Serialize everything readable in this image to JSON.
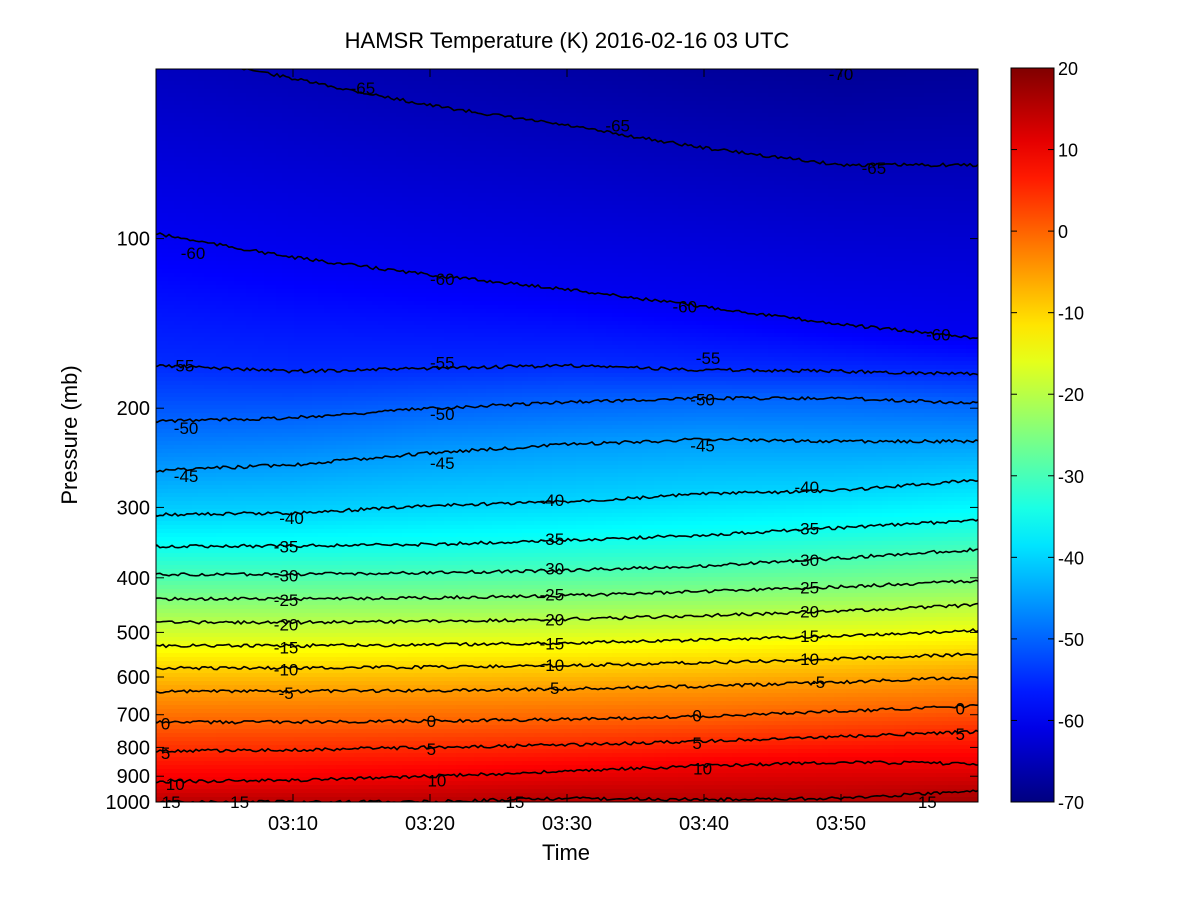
{
  "chart_data": {
    "type": "heatmap",
    "subtype": "filled-contour",
    "title": "HAMSR  Temperature (K) 2016-02-16 03 UTC",
    "xlabel": "Time",
    "ylabel": "Pressure (mb)",
    "x_tick_labels": [
      "03:10",
      "03:20",
      "03:30",
      "03:40",
      "03:50"
    ],
    "x_tick_minutes": [
      10,
      20,
      30,
      40,
      50
    ],
    "xlim_minutes": [
      0,
      60
    ],
    "y_tick_labels": [
      "100",
      "200",
      "300",
      "400",
      "500",
      "600",
      "700",
      "800",
      "900",
      "1000"
    ],
    "y_tick_values": [
      100,
      200,
      300,
      400,
      500,
      600,
      700,
      800,
      900,
      1000
    ],
    "ylim": [
      50,
      1000
    ],
    "y_scale": "log",
    "y_reversed": true,
    "colorbar": {
      "colormap": "jet",
      "range": [
        -70,
        20
      ],
      "tick_labels": [
        "20",
        "10",
        "0",
        "-10",
        "-20",
        "-30",
        "-40",
        "-50",
        "-60",
        "-70"
      ],
      "tick_values": [
        20,
        10,
        0,
        -10,
        -20,
        -30,
        -40,
        -50,
        -60,
        -70
      ]
    },
    "contour_levels": [
      -70,
      -65,
      -60,
      -55,
      -50,
      -45,
      -40,
      -35,
      -30,
      -25,
      -20,
      -15,
      -10,
      -5,
      0,
      5,
      10,
      15
    ],
    "contours": [
      {
        "level": -65,
        "x": [
          0,
          10,
          20,
          30,
          40,
          50,
          60
        ],
        "p": [
          46,
          52,
          58,
          63,
          69,
          74,
          74
        ]
      },
      {
        "level": -60,
        "x": [
          0,
          10,
          20,
          30,
          40,
          50,
          60
        ],
        "p": [
          98,
          108,
          116,
          123,
          132,
          142,
          150
        ]
      },
      {
        "level": -55,
        "x": [
          0,
          10,
          20,
          30,
          40,
          50,
          60
        ],
        "p": [
          168,
          172,
          170,
          168,
          171,
          172,
          174
        ]
      },
      {
        "level": -50,
        "x": [
          0,
          10,
          20,
          30,
          40,
          50,
          60
        ],
        "p": [
          211,
          208,
          200,
          195,
          192,
          192,
          196
        ]
      },
      {
        "level": -45,
        "x": [
          0,
          10,
          20,
          30,
          40,
          50,
          60
        ],
        "p": [
          258,
          252,
          240,
          232,
          227,
          229,
          229
        ]
      },
      {
        "level": -40,
        "x": [
          0,
          10,
          20,
          30,
          40,
          50,
          60
        ],
        "p": [
          309,
          307,
          298,
          293,
          284,
          280,
          268
        ]
      },
      {
        "level": -35,
        "x": [
          0,
          10,
          20,
          30,
          40,
          50,
          60
        ],
        "p": [
          352,
          351,
          349,
          343,
          336,
          326,
          316
        ]
      },
      {
        "level": -30,
        "x": [
          0,
          10,
          20,
          30,
          40,
          50,
          60
        ],
        "p": [
          395,
          394,
          392,
          388,
          381,
          369,
          356
        ]
      },
      {
        "level": -25,
        "x": [
          0,
          10,
          20,
          30,
          40,
          50,
          60
        ],
        "p": [
          436,
          436,
          434,
          430,
          423,
          415,
          405
        ]
      },
      {
        "level": -20,
        "x": [
          0,
          10,
          20,
          30,
          40,
          50,
          60
        ],
        "p": [
          480,
          480,
          478,
          474,
          467,
          458,
          447
        ]
      },
      {
        "level": -15,
        "x": [
          0,
          10,
          20,
          30,
          40,
          50,
          60
        ],
        "p": [
          528,
          528,
          526,
          522,
          516,
          507,
          496
        ]
      },
      {
        "level": -10,
        "x": [
          0,
          10,
          20,
          30,
          40,
          50,
          60
        ],
        "p": [
          578,
          578,
          576,
          572,
          566,
          557,
          546
        ]
      },
      {
        "level": -5,
        "x": [
          0,
          10,
          20,
          30,
          40,
          50,
          60
        ],
        "p": [
          637,
          636,
          634,
          630,
          623,
          613,
          600
        ]
      },
      {
        "level": 0,
        "x": [
          0,
          10,
          20,
          30,
          40,
          50,
          60
        ],
        "p": [
          722,
          721,
          718,
          713,
          705,
          690,
          675
        ]
      },
      {
        "level": 5,
        "x": [
          0,
          10,
          20,
          30,
          40,
          50,
          60
        ],
        "p": [
          812,
          808,
          800,
          792,
          780,
          765,
          750
        ]
      },
      {
        "level": 10,
        "x": [
          0,
          10,
          20,
          30,
          40,
          50,
          60
        ],
        "p": [
          920,
          915,
          900,
          882,
          862,
          850,
          855
        ]
      },
      {
        "level": 15,
        "x": [
          0,
          10,
          20,
          30,
          40,
          50,
          60
        ],
        "p": [
          1000,
          1000,
          999,
          985,
          990,
          985,
          955
        ]
      }
    ],
    "contour_labels": [
      {
        "text": "-65",
        "x": 15.1,
        "p": 54
      },
      {
        "text": "-65",
        "x": 33.7,
        "p": 63
      },
      {
        "text": "-65",
        "x": 52.4,
        "p": 75
      },
      {
        "text": "-70",
        "x": 50.0,
        "p": 51
      },
      {
        "text": "-60",
        "x": 2.7,
        "p": 106
      },
      {
        "text": "-60",
        "x": 20.9,
        "p": 118
      },
      {
        "text": "-60",
        "x": 38.6,
        "p": 132
      },
      {
        "text": "-60",
        "x": 57.1,
        "p": 148
      },
      {
        "text": "-55",
        "x": 1.9,
        "p": 168
      },
      {
        "text": "-55",
        "x": 20.9,
        "p": 166
      },
      {
        "text": "-55",
        "x": 40.3,
        "p": 163
      },
      {
        "text": "-50",
        "x": 2.2,
        "p": 217
      },
      {
        "text": "-50",
        "x": 20.9,
        "p": 205
      },
      {
        "text": "-50",
        "x": 39.9,
        "p": 193
      },
      {
        "text": "-45",
        "x": 2.2,
        "p": 264
      },
      {
        "text": "-45",
        "x": 20.9,
        "p": 250
      },
      {
        "text": "-45",
        "x": 39.9,
        "p": 233
      },
      {
        "text": "-40",
        "x": 9.9,
        "p": 313
      },
      {
        "text": "-40",
        "x": 28.9,
        "p": 291
      },
      {
        "text": "-40",
        "x": 47.5,
        "p": 276
      },
      {
        "text": "-35",
        "x": 9.5,
        "p": 352
      },
      {
        "text": "-35",
        "x": 28.9,
        "p": 341
      },
      {
        "text": "-35",
        "x": 47.5,
        "p": 327
      },
      {
        "text": "-30",
        "x": 9.5,
        "p": 396
      },
      {
        "text": "-30",
        "x": 28.9,
        "p": 385
      },
      {
        "text": "-30",
        "x": 47.5,
        "p": 372
      },
      {
        "text": "-25",
        "x": 9.5,
        "p": 438
      },
      {
        "text": "-25",
        "x": 28.9,
        "p": 428
      },
      {
        "text": "-25",
        "x": 47.5,
        "p": 416
      },
      {
        "text": "-20",
        "x": 9.5,
        "p": 484
      },
      {
        "text": "-20",
        "x": 28.9,
        "p": 474
      },
      {
        "text": "-20",
        "x": 47.5,
        "p": 459
      },
      {
        "text": "-15",
        "x": 9.5,
        "p": 532
      },
      {
        "text": "-15",
        "x": 28.9,
        "p": 523
      },
      {
        "text": "-15",
        "x": 47.5,
        "p": 507
      },
      {
        "text": "-10",
        "x": 9.5,
        "p": 582
      },
      {
        "text": "-10",
        "x": 28.9,
        "p": 571
      },
      {
        "text": "-10",
        "x": 47.5,
        "p": 557
      },
      {
        "text": "-5",
        "x": 9.5,
        "p": 640
      },
      {
        "text": "-5",
        "x": 28.9,
        "p": 628
      },
      {
        "text": "-5",
        "x": 48.3,
        "p": 612
      },
      {
        "text": "0",
        "x": 0.7,
        "p": 725
      },
      {
        "text": "0",
        "x": 20.1,
        "p": 718
      },
      {
        "text": "0",
        "x": 39.5,
        "p": 702
      },
      {
        "text": "0",
        "x": 58.7,
        "p": 682
      },
      {
        "text": "5",
        "x": 0.7,
        "p": 818
      },
      {
        "text": "5",
        "x": 20.1,
        "p": 806
      },
      {
        "text": "5",
        "x": 39.5,
        "p": 785
      },
      {
        "text": "5",
        "x": 58.7,
        "p": 758
      },
      {
        "text": "10",
        "x": 1.4,
        "p": 930
      },
      {
        "text": "10",
        "x": 20.5,
        "p": 915
      },
      {
        "text": "10",
        "x": 39.9,
        "p": 872
      },
      {
        "text": "15",
        "x": 1.1,
        "p": 1000
      },
      {
        "text": "15",
        "x": 6.1,
        "p": 1000
      },
      {
        "text": "15",
        "x": 26.2,
        "p": 1000
      },
      {
        "text": "15",
        "x": 56.3,
        "p": 1000
      }
    ]
  }
}
